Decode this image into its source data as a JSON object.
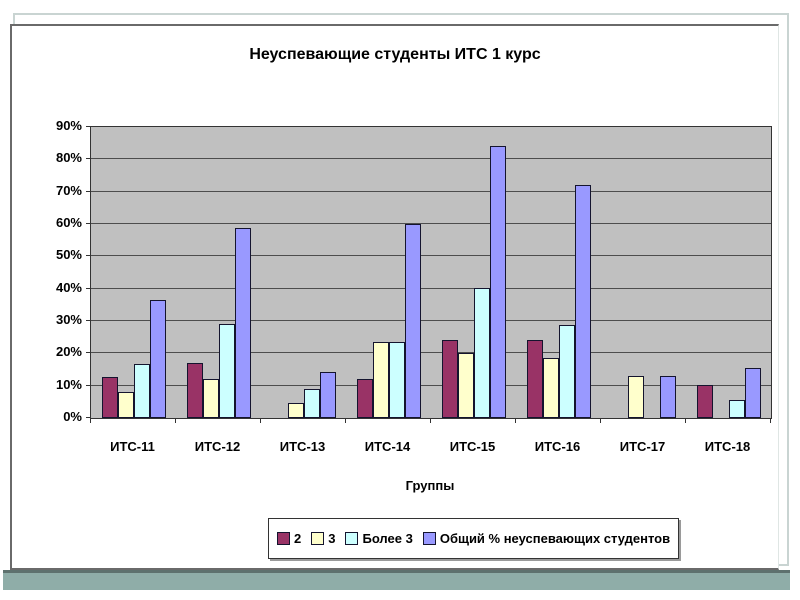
{
  "slide": {
    "background": "#ffffff",
    "bottom_bar_color": "#8fada8",
    "frame_border_color": "#6a6a6a",
    "placeholder_border_color": "#c9d4d2"
  },
  "chart_data": {
    "type": "bar",
    "title": "Неуспевающие студенты ИТС 1 курс",
    "xlabel": "Группы",
    "ylabel": "",
    "ylim": [
      0,
      90
    ],
    "ytick_step": 10,
    "ytick_suffix": "%",
    "grid": true,
    "legend_position": "bottom",
    "plot_bg": "#c0c0c0",
    "categories": [
      "ИТС-11",
      "ИТС-12",
      "ИТС-13",
      "ИТС-14",
      "ИТС-15",
      "ИТС-16",
      "ИТС-17",
      "ИТС-18"
    ],
    "series": [
      {
        "name": "2",
        "color": "#993366",
        "values": [
          12,
          16.5,
          0,
          11.5,
          23.5,
          23.5,
          0,
          9.5
        ]
      },
      {
        "name": "3",
        "color": "#ffffcc",
        "values": [
          7.5,
          11.5,
          4,
          23,
          19.5,
          18,
          12.5,
          0
        ]
      },
      {
        "name": "Более 3",
        "color": "#ccffff",
        "values": [
          16,
          28.5,
          8.5,
          23,
          39.5,
          28,
          0,
          5
        ]
      },
      {
        "name": "Общий % неуспевающих студентов",
        "color": "#9999ff",
        "values": [
          36,
          58,
          13.5,
          59.5,
          83.5,
          71.5,
          12.5,
          15
        ]
      }
    ]
  }
}
